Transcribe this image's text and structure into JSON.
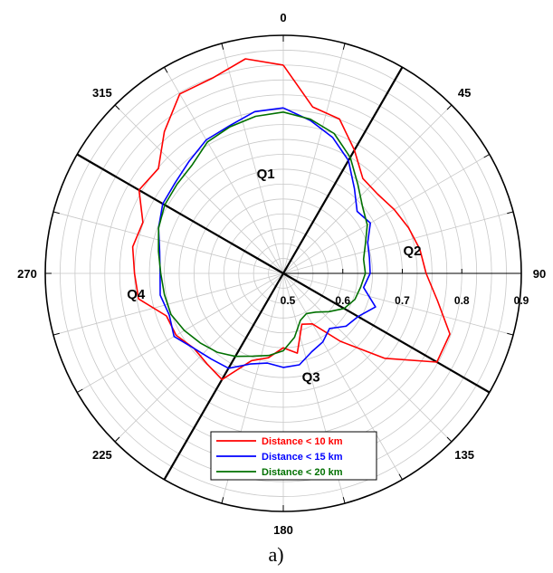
{
  "caption": "a)",
  "chart_data": {
    "type": "polar-line",
    "angle_ticks": [
      "0",
      "45",
      "90",
      "135",
      "180",
      "225",
      "270",
      "315"
    ],
    "angle_tick_degrees": [
      0,
      45,
      90,
      135,
      180,
      225,
      270,
      315
    ],
    "radial_range": [
      0.5,
      0.9
    ],
    "radial_ticks": [
      "0.5",
      "0.6",
      "0.7",
      "0.8",
      "0.9"
    ],
    "radial_tick_values": [
      0.6,
      0.7,
      0.8,
      0.9
    ],
    "radial_tick_text_values": [
      0.5,
      0.6,
      0.7,
      0.8,
      0.9
    ],
    "grid": true,
    "quadrant_dividers_deg": [
      30,
      120,
      210,
      300
    ],
    "quadrant_labels": [
      {
        "text": "Q1",
        "angle": 350,
        "r": 0.67
      },
      {
        "text": "Q2",
        "angle": 80,
        "r": 0.72
      },
      {
        "text": "Q3",
        "angle": 165,
        "r": 0.68
      },
      {
        "text": "Q4",
        "angle": 262,
        "r": 0.75
      }
    ],
    "legend_position": "bottom-center",
    "series": [
      {
        "name": "Distance < 10 km",
        "color": "#ff0000",
        "angles": [
          0,
          10,
          20,
          30,
          40,
          50,
          60,
          70,
          80,
          90,
          100,
          110,
          120,
          130,
          140,
          150,
          160,
          170,
          180,
          190,
          200,
          210,
          220,
          230,
          240,
          250,
          260,
          270,
          280,
          290,
          300,
          310,
          320,
          330,
          340,
          350,
          360
        ],
        "values": [
          0.85,
          0.784,
          0.776,
          0.739,
          0.708,
          0.707,
          0.715,
          0.724,
          0.733,
          0.74,
          0.763,
          0.798,
          0.798,
          0.722,
          0.649,
          0.598,
          0.591,
          0.636,
          0.625,
          0.644,
          0.656,
          0.706,
          0.699,
          0.696,
          0.708,
          0.709,
          0.747,
          0.75,
          0.757,
          0.751,
          0.78,
          0.774,
          0.811,
          0.848,
          0.849,
          0.866,
          0.85
        ]
      },
      {
        "name": "Distance < 15 km",
        "color": "#0000ff",
        "angles": [
          0,
          10,
          20,
          30,
          40,
          50,
          60,
          70,
          80,
          90,
          100,
          110,
          120,
          130,
          140,
          150,
          160,
          170,
          180,
          190,
          200,
          210,
          220,
          230,
          240,
          250,
          260,
          270,
          280,
          290,
          300,
          310,
          320,
          330,
          340,
          350,
          360
        ],
        "values": [
          0.778,
          0.761,
          0.743,
          0.719,
          0.686,
          0.662,
          0.669,
          0.651,
          0.647,
          0.646,
          0.637,
          0.665,
          0.645,
          0.638,
          0.621,
          0.633,
          0.64,
          0.656,
          0.658,
          0.653,
          0.662,
          0.684,
          0.688,
          0.696,
          0.712,
          0.704,
          0.71,
          0.707,
          0.711,
          0.723,
          0.734,
          0.737,
          0.746,
          0.759,
          0.764,
          0.776,
          0.778
        ]
      },
      {
        "name": "Distance < 20 km",
        "color": "#007000",
        "angles": [
          0,
          10,
          20,
          30,
          40,
          50,
          60,
          70,
          80,
          90,
          100,
          110,
          120,
          130,
          140,
          150,
          160,
          170,
          180,
          190,
          200,
          210,
          220,
          230,
          240,
          250,
          260,
          270,
          280,
          290,
          300,
          310,
          320,
          330,
          340,
          350,
          360
        ],
        "values": [
          0.771,
          0.763,
          0.75,
          0.725,
          0.695,
          0.674,
          0.663,
          0.647,
          0.637,
          0.638,
          0.632,
          0.628,
          0.618,
          0.6,
          0.585,
          0.578,
          0.584,
          0.609,
          0.63,
          0.64,
          0.648,
          0.661,
          0.673,
          0.682,
          0.692,
          0.701,
          0.703,
          0.706,
          0.713,
          0.723,
          0.73,
          0.733,
          0.738,
          0.755,
          0.762,
          0.768,
          0.771
        ]
      }
    ]
  }
}
